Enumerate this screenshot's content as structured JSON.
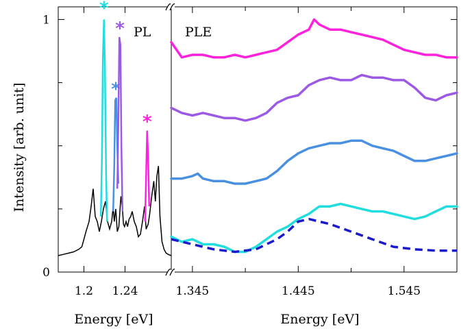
{
  "chart_data": [
    {
      "panel": "PL",
      "type": "line",
      "label": "PL",
      "xlabel": "Energy [eV]",
      "ylabel": "Intensity [arb. unit]",
      "xlim": [
        1.175,
        1.285
      ],
      "ylim": [
        0,
        1.05
      ],
      "x_ticks": [
        1.2,
        1.24
      ],
      "x_tick_labels": [
        "1.2",
        "1.24"
      ],
      "y_ticks": [
        0,
        1
      ],
      "y_tick_labels": [
        "0",
        "1"
      ],
      "grid": false,
      "base_color": "#000000",
      "spectrum": {
        "x": [
          1.175,
          1.18,
          1.185,
          1.19,
          1.195,
          1.198,
          1.2,
          1.202,
          1.205,
          1.207,
          1.209,
          1.211,
          1.213,
          1.215,
          1.217,
          1.219,
          1.221,
          1.223,
          1.225,
          1.227,
          1.2285,
          1.2295,
          1.231,
          1.2325,
          1.234,
          1.236,
          1.2375,
          1.2385,
          1.2395,
          1.241,
          1.2425,
          1.244,
          1.2455,
          1.247,
          1.249,
          1.251,
          1.253,
          1.255,
          1.257,
          1.259,
          1.2605,
          1.2615,
          1.2625,
          1.264,
          1.266,
          1.268,
          1.2695,
          1.271,
          1.2725,
          1.274,
          1.276,
          1.278,
          1.28,
          1.282,
          1.285
        ],
        "y": [
          0.065,
          0.07,
          0.075,
          0.08,
          0.09,
          0.1,
          0.13,
          0.16,
          0.2,
          0.26,
          0.33,
          0.22,
          0.2,
          0.16,
          0.2,
          0.25,
          0.28,
          0.2,
          0.17,
          0.2,
          0.26,
          0.2,
          0.25,
          0.16,
          0.18,
          0.3,
          0.25,
          0.19,
          0.18,
          0.2,
          0.18,
          0.21,
          0.22,
          0.24,
          0.2,
          0.18,
          0.14,
          0.15,
          0.2,
          0.26,
          0.17,
          0.18,
          0.19,
          0.23,
          0.3,
          0.36,
          0.28,
          0.38,
          0.42,
          0.22,
          0.12,
          0.09,
          0.075,
          0.07,
          0.065
        ]
      },
      "highlighted_peaks": [
        {
          "color": "#22dddd",
          "x": [
            1.2165,
            1.2175,
            1.2185,
            1.2195,
            1.2205,
            1.2215,
            1.2225
          ],
          "y": [
            0.22,
            0.45,
            0.85,
            1.0,
            0.8,
            0.4,
            0.2
          ],
          "star_x": 1.2195,
          "star_y": 1.06
        },
        {
          "color": "#4a90e2",
          "x": [
            1.2285,
            1.2295,
            1.2305,
            1.2315,
            1.2325,
            1.2335
          ],
          "y": [
            0.24,
            0.42,
            0.68,
            0.69,
            0.5,
            0.35
          ],
          "star_x": 1.231,
          "star_y": 0.74
        },
        {
          "color": "#9b59e6",
          "x": [
            1.2325,
            1.2335,
            1.2345,
            1.2355,
            1.2365,
            1.2375
          ],
          "y": [
            0.33,
            0.6,
            0.93,
            0.9,
            0.5,
            0.24
          ],
          "star_x": 1.235,
          "star_y": 0.98
        },
        {
          "color": "#ff22dd",
          "x": [
            1.2595,
            1.2605,
            1.2615,
            1.2625,
            1.2635
          ],
          "y": [
            0.2,
            0.38,
            0.56,
            0.44,
            0.26
          ],
          "star_x": 1.2615,
          "star_y": 0.61
        }
      ],
      "star_symbol": "*"
    },
    {
      "panel": "PLE",
      "type": "line",
      "label": "PLE",
      "xlabel": "Energy [eV]",
      "xlim": [
        1.325,
        1.595
      ],
      "x_ticks": [
        1.345,
        1.445,
        1.545
      ],
      "x_tick_labels": [
        "1.345",
        "1.445",
        "1.545"
      ],
      "ylim": [
        0,
        1.05
      ],
      "grid": false,
      "series": [
        {
          "color": "#ff22dd",
          "style": "solid",
          "x": [
            1.325,
            1.335,
            1.345,
            1.355,
            1.365,
            1.375,
            1.385,
            1.395,
            1.405,
            1.415,
            1.425,
            1.435,
            1.445,
            1.455,
            1.46,
            1.465,
            1.475,
            1.485,
            1.495,
            1.505,
            1.515,
            1.525,
            1.535,
            1.545,
            1.555,
            1.565,
            1.575,
            1.585,
            1.595
          ],
          "y": [
            0.91,
            0.85,
            0.86,
            0.86,
            0.85,
            0.85,
            0.86,
            0.85,
            0.86,
            0.87,
            0.88,
            0.91,
            0.94,
            0.96,
            1.0,
            0.98,
            0.96,
            0.96,
            0.95,
            0.94,
            0.93,
            0.92,
            0.9,
            0.88,
            0.87,
            0.86,
            0.86,
            0.85,
            0.85
          ]
        },
        {
          "color": "#9b59e6",
          "style": "solid",
          "x": [
            1.325,
            1.335,
            1.345,
            1.355,
            1.365,
            1.375,
            1.385,
            1.395,
            1.405,
            1.415,
            1.425,
            1.435,
            1.445,
            1.455,
            1.465,
            1.475,
            1.485,
            1.495,
            1.505,
            1.515,
            1.525,
            1.535,
            1.545,
            1.555,
            1.565,
            1.575,
            1.585,
            1.595
          ],
          "y": [
            0.65,
            0.63,
            0.62,
            0.63,
            0.62,
            0.61,
            0.61,
            0.6,
            0.61,
            0.63,
            0.67,
            0.69,
            0.7,
            0.74,
            0.76,
            0.77,
            0.76,
            0.76,
            0.78,
            0.77,
            0.77,
            0.76,
            0.76,
            0.73,
            0.69,
            0.68,
            0.7,
            0.71
          ]
        },
        {
          "color": "#4a90e2",
          "style": "solid",
          "x": [
            1.325,
            1.335,
            1.345,
            1.35,
            1.355,
            1.365,
            1.375,
            1.385,
            1.395,
            1.405,
            1.415,
            1.425,
            1.435,
            1.445,
            1.455,
            1.465,
            1.475,
            1.485,
            1.495,
            1.505,
            1.515,
            1.525,
            1.535,
            1.545,
            1.555,
            1.565,
            1.575,
            1.585,
            1.595
          ],
          "y": [
            0.37,
            0.37,
            0.38,
            0.39,
            0.37,
            0.36,
            0.36,
            0.35,
            0.35,
            0.36,
            0.37,
            0.4,
            0.44,
            0.47,
            0.49,
            0.5,
            0.51,
            0.51,
            0.52,
            0.52,
            0.5,
            0.49,
            0.48,
            0.46,
            0.44,
            0.44,
            0.45,
            0.46,
            0.47
          ]
        },
        {
          "color": "#22dddd",
          "style": "solid",
          "x": [
            1.325,
            1.335,
            1.345,
            1.355,
            1.365,
            1.375,
            1.385,
            1.395,
            1.405,
            1.415,
            1.425,
            1.435,
            1.445,
            1.455,
            1.465,
            1.475,
            1.485,
            1.495,
            1.505,
            1.515,
            1.525,
            1.535,
            1.545,
            1.555,
            1.565,
            1.575,
            1.585,
            1.595
          ],
          "y": [
            0.14,
            0.12,
            0.13,
            0.11,
            0.11,
            0.1,
            0.08,
            0.08,
            0.1,
            0.13,
            0.16,
            0.18,
            0.21,
            0.23,
            0.26,
            0.26,
            0.27,
            0.26,
            0.25,
            0.24,
            0.24,
            0.23,
            0.22,
            0.21,
            0.22,
            0.24,
            0.26,
            0.26
          ]
        },
        {
          "color": "#1a1acc",
          "style": "dashed",
          "x": [
            1.325,
            1.345,
            1.365,
            1.385,
            1.405,
            1.425,
            1.435,
            1.445,
            1.455,
            1.465,
            1.475,
            1.495,
            1.515,
            1.535,
            1.555,
            1.575,
            1.595
          ],
          "y": [
            0.13,
            0.11,
            0.09,
            0.08,
            0.09,
            0.13,
            0.16,
            0.2,
            0.21,
            0.2,
            0.19,
            0.16,
            0.13,
            0.1,
            0.09,
            0.085,
            0.085
          ]
        }
      ]
    }
  ]
}
